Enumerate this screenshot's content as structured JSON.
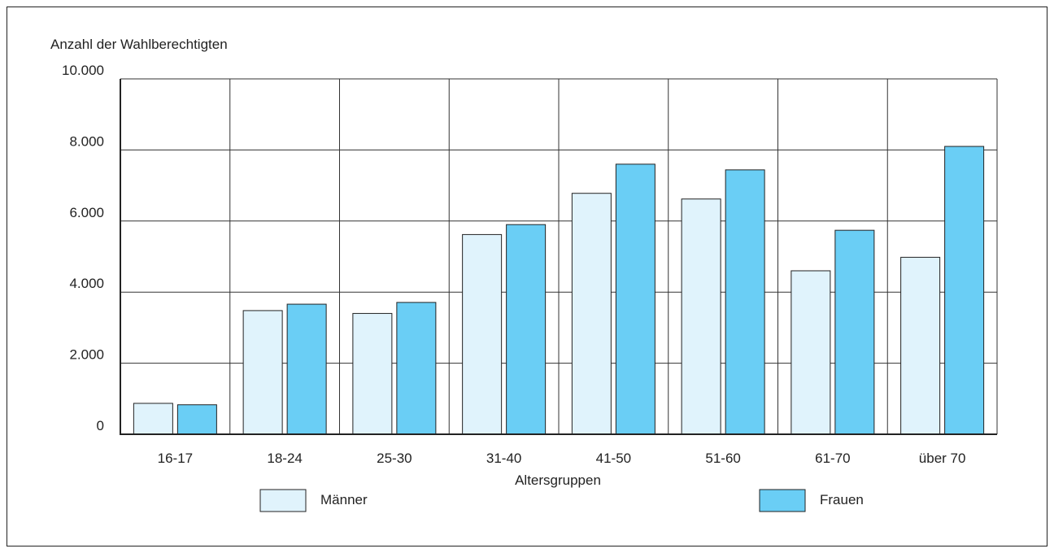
{
  "chart_data": {
    "type": "bar",
    "ylabel": "Anzahl der Wahlberechtigten",
    "xlabel": "Altersgruppen",
    "categories": [
      "16-17",
      "18-24",
      "25-30",
      "31-40",
      "41-50",
      "51-60",
      "61-70",
      "über 70"
    ],
    "series": [
      {
        "name": "Männer",
        "color": "#e0f3fc",
        "values": [
          870,
          3480,
          3400,
          5620,
          6780,
          6620,
          4600,
          4980
        ]
      },
      {
        "name": "Frauen",
        "color": "#6acef5",
        "values": [
          830,
          3660,
          3710,
          5900,
          7600,
          7440,
          5740,
          8100
        ]
      }
    ],
    "ylim": [
      0,
      10000
    ],
    "yticks": [
      {
        "value": 0,
        "label": "0"
      },
      {
        "value": 2000,
        "label": "2.000"
      },
      {
        "value": 4000,
        "label": "4.000"
      },
      {
        "value": 6000,
        "label": "6.000"
      },
      {
        "value": 8000,
        "label": "8.000"
      },
      {
        "value": 10000,
        "label": "10.000"
      }
    ],
    "grid": true,
    "legend_position": "bottom"
  }
}
